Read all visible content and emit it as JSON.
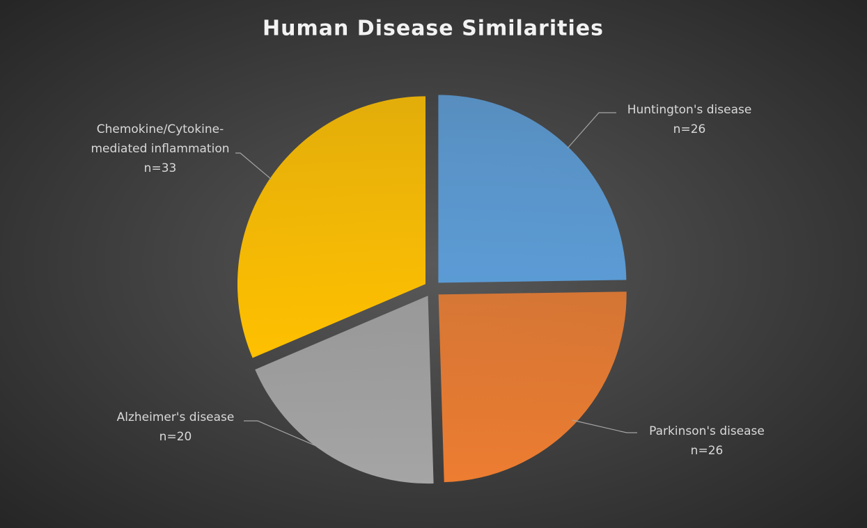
{
  "chart_data": {
    "type": "pie",
    "title": "Human Disease Similarities",
    "categories": [
      "Huntington's disease",
      "Parkinson's disease",
      "Alzheimer's disease",
      "Chemokine/Cytokine-mediated inflammation"
    ],
    "values": [
      26,
      26,
      20,
      33
    ],
    "value_labels": [
      "n=26",
      "n=26",
      "n=20",
      "n=33"
    ],
    "colors": [
      "#5b9bd5",
      "#ed7d31",
      "#a5a5a5",
      "#ffc000"
    ]
  }
}
